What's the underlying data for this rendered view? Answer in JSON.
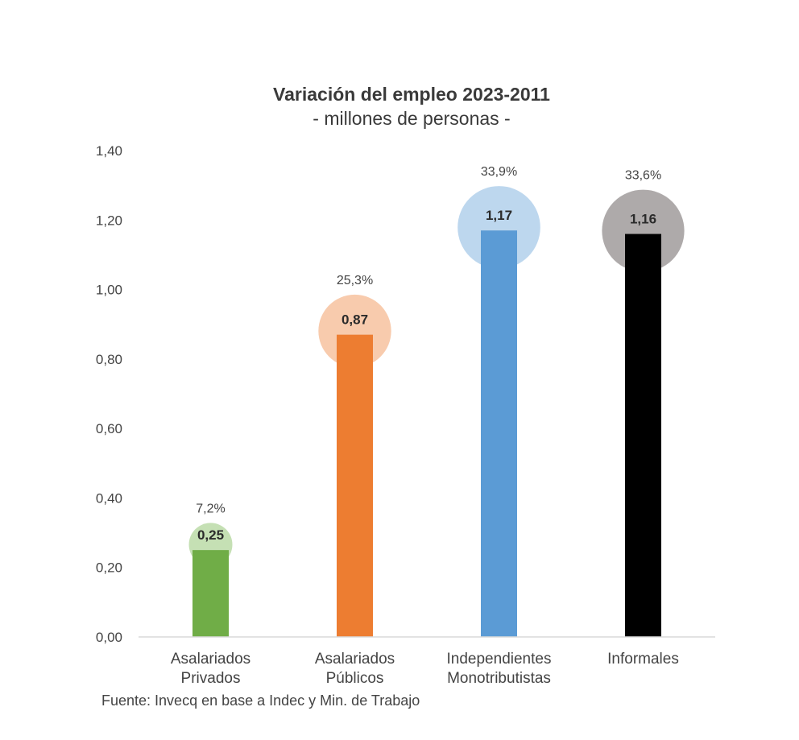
{
  "chart_data": {
    "type": "bar",
    "title": "Variación del empleo 2023-2011",
    "subtitle": "- millones de personas -",
    "categories": [
      [
        "Asalariados",
        "Privados"
      ],
      [
        "Asalariados",
        "Públicos"
      ],
      [
        "Independientes",
        "Monotributistas"
      ],
      [
        "Informales"
      ]
    ],
    "values": [
      0.25,
      0.87,
      1.17,
      1.16
    ],
    "value_labels": [
      "0,25",
      "0,87",
      "1,17",
      "1,16"
    ],
    "percent_labels": [
      "7,2%",
      "25,3%",
      "33,9%",
      "33,6%"
    ],
    "percent_values": [
      7.2,
      25.3,
      33.9,
      33.6
    ],
    "bar_colors": [
      "#70ad47",
      "#ed7d31",
      "#5b9bd5",
      "#000000"
    ],
    "bubble_colors": [
      "#c5e0b4",
      "#f8cbad",
      "#bdd7ee",
      "#aeaaaa"
    ],
    "yticks": [
      "0,00",
      "0,20",
      "0,40",
      "0,60",
      "0,80",
      "1,00",
      "1,20",
      "1,40"
    ],
    "ylim": [
      0,
      1.4
    ],
    "xlabel": "",
    "ylabel": "",
    "grid": false
  },
  "source": "Fuente: Invecq en base a Indec y Min. de Trabajo"
}
